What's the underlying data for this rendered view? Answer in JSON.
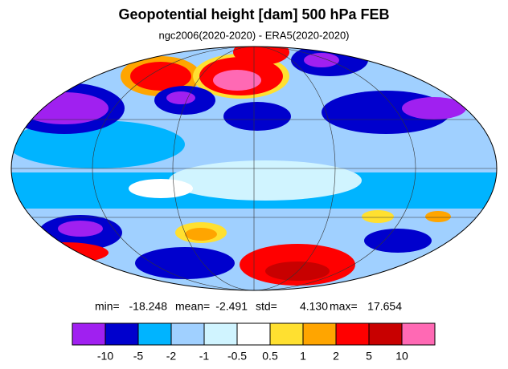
{
  "header": {
    "title": "Geopotential height [dam] 500 hPa FEB",
    "subtitle": "ngc2006(2020-2020) - ERA5(2020-2020)"
  },
  "stats": [
    {
      "label": "min=",
      "value": "-18.248"
    },
    {
      "label": "mean=",
      "value": "-2.491"
    },
    {
      "label": "std=",
      "value": "4.130"
    },
    {
      "label": "max=",
      "value": "17.654"
    }
  ],
  "colorbar": {
    "colors": [
      "#a020f0",
      "#0000cd",
      "#00b4ff",
      "#a0d0ff",
      "#d0f4ff",
      "#ffffff",
      "#ffe030",
      "#ffa500",
      "#ff0000",
      "#c80000",
      "#ff69b4"
    ],
    "labels": [
      "-10",
      "-5",
      "-2",
      "-1",
      "-0.5",
      "0.5",
      "1",
      "2",
      "5",
      "10"
    ]
  }
}
